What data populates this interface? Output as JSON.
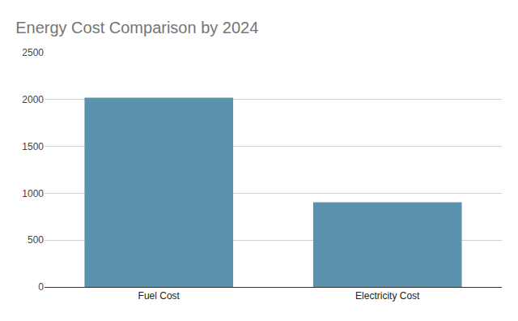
{
  "chart_data": {
    "type": "bar",
    "title": "Energy Cost Comparison by 2024",
    "categories": [
      "Fuel Cost",
      "Electricity Cost"
    ],
    "values": [
      2020,
      905
    ],
    "color": "#5b93ae",
    "ylim": [
      0,
      2500
    ],
    "yticks": [
      0,
      500,
      1000,
      1500,
      2000,
      2500
    ],
    "grid": true
  }
}
